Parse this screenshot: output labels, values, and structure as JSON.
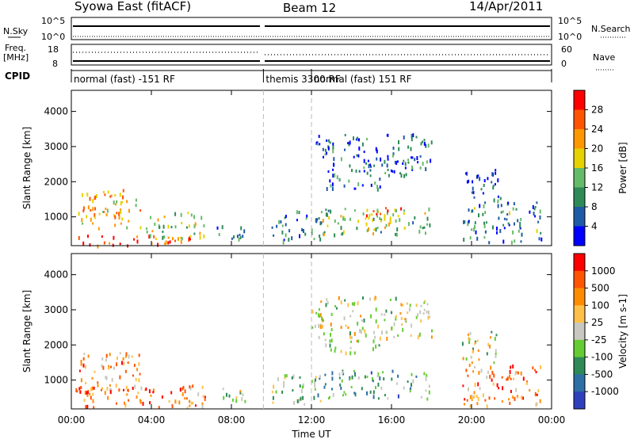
{
  "header": {
    "station": "Syowa East (fitACF)",
    "beam": "Beam 12",
    "date": "14/Apr/2011"
  },
  "strips": {
    "nsky_label": "N.Sky",
    "nsearch_label": "N.Search",
    "nsky_ticks": [
      "10^5",
      "10^0"
    ],
    "freq_label": "Freq.",
    "freq_unit": "[MHz]",
    "freq_ticks": [
      "18",
      "8"
    ],
    "nave_label": "Nave",
    "nave_ticks": [
      "60",
      "0"
    ],
    "cpid_label": "CPID",
    "cpid_segments": [
      {
        "label": "normal (fast) -151 RF",
        "start_h": 0,
        "end_h": 9.6
      },
      {
        "label": "themis 3300 RF",
        "start_h": 9.6,
        "end_h": 12.0
      },
      {
        "label": "normal (fast) 151 RF",
        "start_h": 12.0,
        "end_h": 24
      }
    ]
  },
  "chart_data": [
    {
      "type": "heatmap",
      "panel": "power",
      "ylabel": "Slant Range [km]",
      "xlabel": "Time UT",
      "xlim": [
        0,
        24
      ],
      "ylim": [
        180,
        4600
      ],
      "x_ticks": [
        "00:00",
        "04:00",
        "08:00",
        "12:00",
        "16:00",
        "20:00",
        "00:00"
      ],
      "y_ticks": [
        1000,
        2000,
        3000,
        4000
      ],
      "colorbar": {
        "label": "Power [dB]",
        "ticks": [
          "4",
          "8",
          "12",
          "16",
          "20",
          "24",
          "28"
        ],
        "colors": [
          "#0000ff",
          "#1f5aa6",
          "#2e8b57",
          "#66bb6a",
          "#e6d200",
          "#ff9800",
          "#ff5500",
          "#ff0000"
        ]
      },
      "dashed_markers_h": [
        9.6,
        12.0
      ],
      "regions": [
        {
          "t0": 0.2,
          "t1": 3.5,
          "r0": 700,
          "r1": 1800,
          "level": 0.65
        },
        {
          "t0": 0.2,
          "t1": 6.0,
          "r0": 200,
          "r1": 500,
          "level": 0.85
        },
        {
          "t0": 3.7,
          "t1": 6.7,
          "r0": 400,
          "r1": 1200,
          "level": 0.5
        },
        {
          "t0": 7.0,
          "t1": 8.8,
          "r0": 400,
          "r1": 800,
          "level": 0.3
        },
        {
          "t0": 10.0,
          "t1": 12.5,
          "r0": 300,
          "r1": 1200,
          "level": 0.2
        },
        {
          "t0": 12.5,
          "t1": 18.0,
          "r0": 500,
          "r1": 1300,
          "level": 0.45
        },
        {
          "t0": 14.5,
          "t1": 16.5,
          "r0": 800,
          "r1": 1300,
          "level": 0.7
        },
        {
          "t0": 12.5,
          "t1": 15.5,
          "r0": 1800,
          "r1": 2200,
          "level": 0.25
        },
        {
          "t0": 12.0,
          "t1": 18.0,
          "r0": 2200,
          "r1": 3400,
          "level": 0.2
        },
        {
          "t0": 19.5,
          "t1": 23.5,
          "r0": 300,
          "r1": 1500,
          "level": 0.3
        },
        {
          "t0": 19.5,
          "t1": 21.5,
          "r0": 1500,
          "r1": 2400,
          "level": 0.15
        }
      ]
    },
    {
      "type": "heatmap",
      "panel": "velocity",
      "ylabel": "Slant Range [km]",
      "xlabel": "Time UT",
      "xlim": [
        0,
        24
      ],
      "ylim": [
        180,
        4600
      ],
      "x_ticks": [
        "00:00",
        "04:00",
        "08:00",
        "12:00",
        "16:00",
        "20:00",
        "00:00"
      ],
      "y_ticks": [
        1000,
        2000,
        3000,
        4000
      ],
      "colorbar": {
        "label": "Velocity [m s-1]",
        "ticks": [
          "1000",
          "500",
          "100",
          "25",
          "-25",
          "-100",
          "-500",
          "-1000"
        ],
        "colors": [
          "#2f40bf",
          "#2e6fa6",
          "#2e8b57",
          "#66cc33",
          "#c8c8c0",
          "#ffc04a",
          "#ff8c00",
          "#ff5500",
          "#ff0000"
        ]
      },
      "dashed_markers_h": [
        9.6,
        12.0
      ],
      "regions": [
        {
          "t0": 0.2,
          "t1": 3.5,
          "r0": 700,
          "r1": 1800,
          "level": 0.7
        },
        {
          "t0": 0.2,
          "t1": 6.8,
          "r0": 200,
          "r1": 900,
          "level": 0.72
        },
        {
          "t0": 7.0,
          "t1": 8.8,
          "r0": 400,
          "r1": 800,
          "level": 0.45
        },
        {
          "t0": 10.0,
          "t1": 12.5,
          "r0": 300,
          "r1": 1200,
          "level": 0.4
        },
        {
          "t0": 12.5,
          "t1": 18.0,
          "r0": 500,
          "r1": 1300,
          "level": 0.32
        },
        {
          "t0": 12.5,
          "t1": 15.5,
          "r0": 1800,
          "r1": 2200,
          "level": 0.5
        },
        {
          "t0": 12.0,
          "t1": 18.0,
          "r0": 2200,
          "r1": 3400,
          "level": 0.5
        },
        {
          "t0": 19.5,
          "t1": 23.5,
          "r0": 300,
          "r1": 1500,
          "level": 0.75
        },
        {
          "t0": 19.5,
          "t1": 21.5,
          "r0": 1500,
          "r1": 2400,
          "level": 0.5
        }
      ]
    }
  ]
}
